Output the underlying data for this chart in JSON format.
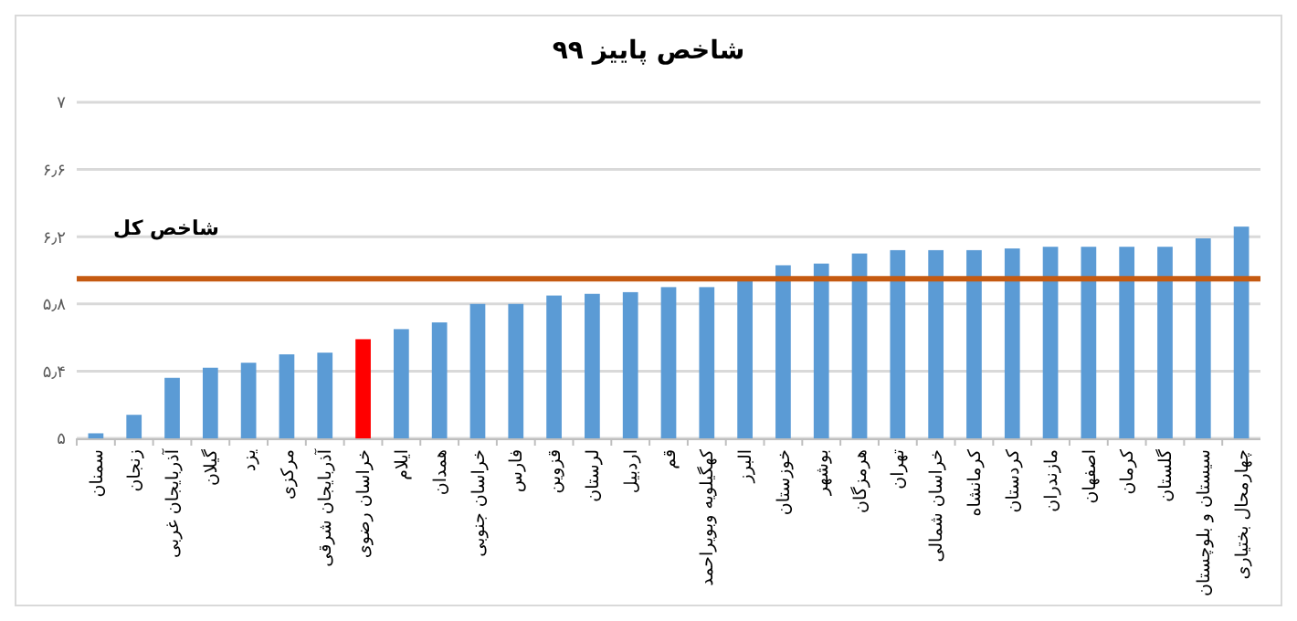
{
  "chart_data": {
    "type": "bar",
    "title": "شاخص پاییز ۹۹",
    "categories": [
      "سمنان",
      "زنجان",
      "آذربایجان غربی",
      "گیلان",
      "یزد",
      "مرکزی",
      "آذربایجان شرقی",
      "خراسان رضوی",
      "ایلام",
      "همدان",
      "خراسان جنوبی",
      "فارس",
      "قزوین",
      "لرستان",
      "اردبیل",
      "قم",
      "کهگیلویه وبویراحمد",
      "البرز",
      "خوزستان",
      "بوشهر",
      "هرمزگان",
      "تهران",
      "خراسان شمالی",
      "کرمانشاه",
      "کردستان",
      "مازندران",
      "اصفهان",
      "کرمان",
      "گلستان",
      "سیستان و بلوچستان",
      "چهارمحال بختیاری"
    ],
    "values": [
      5.03,
      5.14,
      5.36,
      5.42,
      5.45,
      5.5,
      5.51,
      5.59,
      5.65,
      5.69,
      5.8,
      5.8,
      5.85,
      5.86,
      5.87,
      5.9,
      5.9,
      5.94,
      6.03,
      6.04,
      6.1,
      6.12,
      6.12,
      6.12,
      6.13,
      6.14,
      6.14,
      6.14,
      6.14,
      6.19,
      6.26
    ],
    "colors": [
      "#5b9bd5",
      "#5b9bd5",
      "#5b9bd5",
      "#5b9bd5",
      "#5b9bd5",
      "#5b9bd5",
      "#5b9bd5",
      "#ff0000",
      "#5b9bd5",
      "#5b9bd5",
      "#5b9bd5",
      "#5b9bd5",
      "#5b9bd5",
      "#5b9bd5",
      "#5b9bd5",
      "#5b9bd5",
      "#5b9bd5",
      "#5b9bd5",
      "#5b9bd5",
      "#5b9bd5",
      "#5b9bd5",
      "#5b9bd5",
      "#5b9bd5",
      "#5b9bd5",
      "#5b9bd5",
      "#5b9bd5",
      "#5b9bd5",
      "#5b9bd5",
      "#5b9bd5",
      "#5b9bd5",
      "#5b9bd5"
    ],
    "ylim": [
      5,
      7
    ],
    "yticks": [
      {
        "value": 5,
        "label": "۵"
      },
      {
        "value": 5.4,
        "label": "۵٫۴"
      },
      {
        "value": 5.8,
        "label": "۵٫۸"
      },
      {
        "value": 6.2,
        "label": "۶٫۲"
      },
      {
        "value": 6.6,
        "label": "۶٫۶"
      },
      {
        "value": 7,
        "label": "۷"
      }
    ],
    "grid": "y",
    "ref_lines": [
      {
        "axis": "y",
        "value": 5.95,
        "label": "شاخص کل",
        "color": "#c55a11"
      }
    ]
  }
}
